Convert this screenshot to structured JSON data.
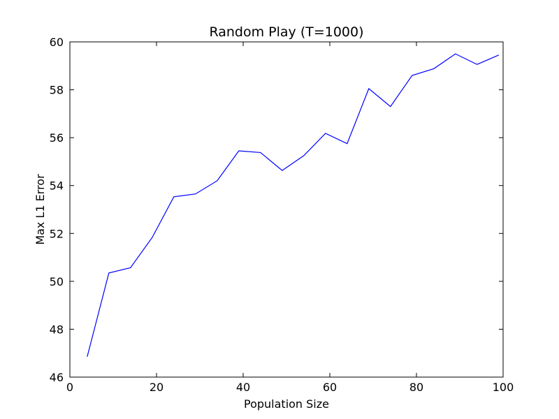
{
  "chart_data": {
    "type": "line",
    "title": "Random Play (T=1000)",
    "xlabel": "Population Size",
    "ylabel": "Max L1 Error",
    "xlim": [
      0,
      100
    ],
    "ylim": [
      46,
      60
    ],
    "xticks": [
      "0",
      "20",
      "40",
      "60",
      "80",
      "100"
    ],
    "yticks": [
      "46",
      "48",
      "50",
      "52",
      "54",
      "56",
      "58",
      "60"
    ],
    "grid": false,
    "legend": "none",
    "series": [
      {
        "color": "#0000ff",
        "x": [
          4,
          9,
          14,
          19,
          24,
          29,
          34,
          39,
          44,
          49,
          54,
          59,
          64,
          69,
          74,
          79,
          84,
          89,
          94,
          99
        ],
        "y": [
          46.85,
          50.35,
          50.57,
          51.83,
          53.53,
          53.65,
          54.2,
          55.45,
          55.38,
          54.63,
          55.25,
          56.18,
          55.75,
          58.05,
          57.3,
          58.6,
          58.88,
          59.5,
          59.06,
          59.45
        ]
      }
    ]
  }
}
